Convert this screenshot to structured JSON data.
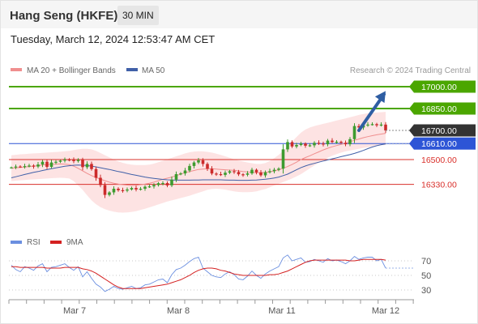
{
  "header": {
    "title": "Hang Seng (HKFE)",
    "timeframe": "30 MIN"
  },
  "timestamp": "Tuesday, March 12, 2024 12:53:47 AM CET",
  "credit": "Research © 2024 Trading Central",
  "colors": {
    "target_green": "#4ba600",
    "support_red": "#d9302b",
    "last_price_dark": "#333333",
    "current_blue": "#2d55d6",
    "arrow_blue": "#2f5ea3",
    "ma20": "#f08f8f",
    "ma50": "#4060a8",
    "bollinger_fill": "#fde0e0",
    "candle_up": "#3d9b2f",
    "candle_down": "#cc2b2b",
    "rsi": "#6b8fe0",
    "rsi_ma": "#d42020"
  },
  "chart_data": [
    {
      "type": "candlestick",
      "title": "",
      "legend": [
        "MA 20 + Bollinger Bands",
        "MA 50"
      ],
      "legend_placement": "top-left",
      "ylim": [
        16000,
        17050
      ],
      "x_ticks": [
        "Mar 7",
        "Mar 8",
        "Mar 11",
        "Mar 12"
      ],
      "levels": [
        {
          "value": 17000,
          "label": "17000.00",
          "kind": "target"
        },
        {
          "value": 16850,
          "label": "16850.00",
          "kind": "target"
        },
        {
          "value": 16700,
          "label": "16700.00",
          "kind": "last"
        },
        {
          "value": 16610,
          "label": "16610.00",
          "kind": "current"
        },
        {
          "value": 16500,
          "label": "16500.00",
          "kind": "support"
        },
        {
          "value": 16330,
          "label": "16330.00",
          "kind": "support"
        }
      ],
      "forecast_arrow": {
        "from_bar": 78,
        "from": 16700,
        "to_bar": 84,
        "to": 16970
      },
      "close": [
        16446,
        16452,
        16451,
        16455,
        16459,
        16452,
        16466,
        16485,
        16450,
        16480,
        16485,
        16493,
        16500,
        16497,
        16489,
        16497,
        16448,
        16470,
        16435,
        16375,
        16325,
        16258,
        16275,
        16300,
        16290,
        16287,
        16295,
        16305,
        16295,
        16300,
        16314,
        16316,
        16326,
        16338,
        16339,
        16323,
        16362,
        16400,
        16405,
        16425,
        16456,
        16480,
        16495,
        16470,
        16437,
        16404,
        16400,
        16395,
        16410,
        16420,
        16415,
        16399,
        16396,
        16405,
        16430,
        16412,
        16392,
        16413,
        16420,
        16430,
        16438,
        16570,
        16620,
        16590,
        16600,
        16610,
        16595,
        16598,
        16615,
        16610,
        16605,
        16630,
        16620,
        16622,
        16615,
        16605,
        16640,
        16730,
        16720,
        16735,
        16740,
        16743,
        16735,
        16740,
        16700
      ],
      "ma20": [
        16440,
        16443,
        16446,
        16449,
        16452,
        16455,
        16458,
        16462,
        16465,
        16467,
        16469,
        16470,
        16469,
        16465,
        16455,
        16440,
        16423,
        16405,
        16390,
        16377,
        16366,
        16355,
        16345,
        16338,
        16332,
        16328,
        16325,
        16323,
        16324,
        16328,
        16332,
        16338,
        16345,
        16355,
        16365,
        16372,
        16380,
        16390,
        16400,
        16410,
        16418,
        16425,
        16432,
        16435,
        16437,
        16437,
        16435,
        16432,
        16430,
        16428,
        16426,
        16422,
        16418,
        16415,
        16412,
        16410,
        16410,
        16412,
        16416,
        16422,
        16430,
        16440,
        16452,
        16466,
        16482,
        16500,
        16514,
        16526,
        16540,
        16553,
        16566,
        16578,
        16588,
        16596,
        16604,
        16612,
        16622,
        16632,
        16641,
        16650,
        16657,
        16664,
        16670,
        16675,
        16680
      ],
      "bb_upper": [
        16530,
        16533,
        16536,
        16538,
        16540,
        16542,
        16544,
        16546,
        16548,
        16550,
        16552,
        16554,
        16557,
        16560,
        16565,
        16570,
        16574,
        16574,
        16570,
        16560,
        16545,
        16530,
        16515,
        16500,
        16488,
        16478,
        16470,
        16465,
        16462,
        16462,
        16462,
        16465,
        16472,
        16482,
        16492,
        16502,
        16512,
        16522,
        16532,
        16542,
        16550,
        16555,
        16557,
        16556,
        16553,
        16548,
        16540,
        16532,
        16522,
        16512,
        16502,
        16494,
        16487,
        16480,
        16475,
        16470,
        16470,
        16476,
        16490,
        16510,
        16532,
        16560,
        16592,
        16624,
        16655,
        16685,
        16706,
        16720,
        16730,
        16738,
        16745,
        16752,
        16760,
        16768,
        16775,
        16782,
        16790,
        16798,
        16806,
        16812,
        16817,
        16820,
        16823,
        16825,
        16827
      ],
      "bb_lower": [
        16352,
        16355,
        16358,
        16360,
        16362,
        16364,
        16366,
        16368,
        16370,
        16372,
        16374,
        16375,
        16374,
        16370,
        16352,
        16322,
        16292,
        16255,
        16220,
        16194,
        16174,
        16160,
        16150,
        16142,
        16138,
        16136,
        16138,
        16141,
        16146,
        16155,
        16163,
        16172,
        16182,
        16192,
        16202,
        16212,
        16220,
        16228,
        16236,
        16244,
        16252,
        16262,
        16272,
        16282,
        16292,
        16298,
        16300,
        16298,
        16294,
        16288,
        16282,
        16278,
        16276,
        16276,
        16278,
        16282,
        16290,
        16298,
        16310,
        16322,
        16334,
        16346,
        16358,
        16370,
        16385,
        16400,
        16420,
        16440,
        16460,
        16478,
        16496,
        16512,
        16526,
        16538,
        16548,
        16556,
        16562,
        16568,
        16574,
        16580,
        16585,
        16590,
        16594,
        16598,
        16600
      ],
      "ma50": [
        16375,
        16382,
        16390,
        16398,
        16405,
        16412,
        16418,
        16425,
        16431,
        16437,
        16443,
        16449,
        16454,
        16458,
        16461,
        16462,
        16461,
        16459,
        16455,
        16450,
        16444,
        16438,
        16432,
        16425,
        16418,
        16412,
        16405,
        16398,
        16392,
        16386,
        16380,
        16375,
        16371,
        16367,
        16364,
        16361,
        16360,
        16359,
        16359,
        16359,
        16359,
        16360,
        16360,
        16361,
        16361,
        16361,
        16361,
        16361,
        16360,
        16359,
        16359,
        16358,
        16358,
        16358,
        16359,
        16360,
        16362,
        16365,
        16369,
        16374,
        16380,
        16390,
        16400,
        16415,
        16430,
        16445,
        16456,
        16466,
        16474,
        16482,
        16490,
        16498,
        16505,
        16512,
        16520,
        16527,
        16534,
        16542,
        16552,
        16563,
        16575,
        16586,
        16595,
        16602,
        16608
      ]
    },
    {
      "type": "line",
      "title": "",
      "legend": [
        "RSI",
        "9MA"
      ],
      "legend_placement": "top-left",
      "ylim": [
        20,
        80
      ],
      "y_ticks": [
        70,
        50,
        30
      ],
      "series": [
        {
          "name": "RSI",
          "values": [
            64,
            58,
            55,
            62,
            60,
            57,
            63,
            66,
            55,
            61,
            62,
            64,
            66,
            61,
            57,
            62,
            48,
            55,
            46,
            38,
            34,
            28,
            31,
            35,
            32,
            31,
            33,
            35,
            32,
            33,
            37,
            38,
            41,
            44,
            45,
            40,
            51,
            58,
            60,
            64,
            69,
            73,
            75,
            60,
            55,
            50,
            48,
            47,
            52,
            55,
            51,
            45,
            44,
            49,
            56,
            50,
            46,
            52,
            56,
            59,
            62,
            74,
            78,
            70,
            72,
            74,
            68,
            69,
            72,
            70,
            68,
            73,
            70,
            71,
            69,
            66,
            70,
            76,
            72,
            74,
            75,
            75,
            70,
            72,
            60
          ]
        },
        {
          "name": "9MA",
          "values": [
            62,
            62,
            61,
            61,
            61,
            61,
            61,
            61,
            60,
            60,
            60,
            60,
            61,
            61,
            61,
            61,
            59,
            58,
            56,
            53,
            49,
            45,
            41,
            37,
            34,
            32,
            32,
            32,
            32,
            32,
            33,
            34,
            35,
            36,
            37,
            38,
            40,
            42,
            44,
            47,
            50,
            54,
            57,
            59,
            60,
            60,
            59,
            57,
            56,
            54,
            52,
            51,
            50,
            50,
            50,
            50,
            50,
            50,
            51,
            51,
            52,
            54,
            56,
            59,
            62,
            65,
            68,
            70,
            71,
            71,
            71,
            71,
            71,
            71,
            71,
            71,
            70,
            70,
            71,
            72,
            72,
            72,
            72,
            72,
            71
          ]
        }
      ]
    }
  ]
}
